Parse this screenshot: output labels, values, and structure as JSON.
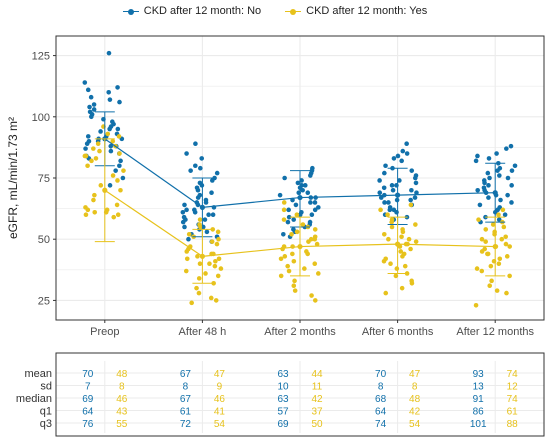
{
  "colors": {
    "no": "#1170aa",
    "yes": "#e7c21c",
    "grid": "#ebebeb",
    "panel_border": "#333333",
    "axis_text": "#4d4d4d"
  },
  "chart_data": {
    "type": "scatter",
    "ylabel": "eGFR, mL/min/1.73 m²",
    "xlabel": "",
    "categories": [
      "Preop",
      "After 48 h",
      "After 2 months",
      "After 6 months",
      "After 12 months"
    ],
    "yticks": [
      25,
      50,
      75,
      100,
      125
    ],
    "ylim": [
      17,
      133
    ],
    "grid": true,
    "legend_position": "top",
    "series": [
      {
        "name": "CKD after 12 month: No",
        "color_key": "no",
        "means": [
          91,
          63,
          67,
          68,
          69
        ],
        "error_low": [
          80,
          51,
          55,
          56,
          57
        ],
        "error_high": [
          102,
          75,
          78,
          79,
          81
        ],
        "points": [
          [
            114,
            112,
            111,
            110,
            108,
            107,
            106,
            105,
            104,
            103,
            102,
            101,
            100,
            99,
            98,
            97,
            96,
            95,
            95,
            94,
            93,
            92,
            92,
            91,
            91,
            90,
            90,
            89,
            88,
            88,
            87,
            86,
            85,
            84,
            83,
            82,
            80,
            78,
            75,
            72,
            126
          ],
          [
            89,
            85,
            83,
            80,
            79,
            78,
            77,
            75,
            74,
            73,
            72,
            71,
            70,
            69,
            68,
            67,
            66,
            65,
            65,
            64,
            64,
            63,
            62,
            62,
            61,
            61,
            60,
            60,
            59,
            58,
            58,
            57,
            56,
            55,
            55,
            54,
            53,
            52,
            51,
            50,
            49
          ],
          [
            79,
            78,
            77,
            76,
            75,
            74,
            73,
            72,
            72,
            71,
            70,
            69,
            69,
            68,
            67,
            67,
            66,
            65,
            65,
            64,
            63,
            62,
            62,
            61,
            60,
            60,
            59,
            58,
            57,
            57,
            56,
            55,
            54,
            53,
            52,
            51
          ],
          [
            89,
            86,
            85,
            84,
            83,
            82,
            80,
            79,
            78,
            77,
            76,
            75,
            74,
            74,
            73,
            72,
            72,
            71,
            70,
            70,
            69,
            69,
            68,
            67,
            67,
            66,
            66,
            65,
            65,
            64,
            63,
            62,
            62,
            61,
            60,
            59,
            58
          ],
          [
            88,
            87,
            85,
            84,
            83,
            82,
            81,
            80,
            79,
            78,
            78,
            77,
            76,
            75,
            75,
            74,
            73,
            72,
            72,
            71,
            70,
            70,
            69,
            68,
            68,
            67,
            66,
            65,
            64,
            63,
            62,
            61,
            60,
            59,
            58,
            57
          ]
        ]
      },
      {
        "name": "CKD after 12 month: Yes",
        "color_key": "yes",
        "means": [
          70,
          43,
          47,
          48,
          47
        ],
        "error_low": [
          49,
          32,
          35,
          36,
          35
        ],
        "error_high": [
          91,
          54,
          59,
          59,
          59
        ],
        "points": [
          [
            96,
            93,
            92,
            90,
            89,
            88,
            87,
            86,
            85,
            84,
            84,
            83,
            82,
            80,
            78,
            76,
            74,
            72,
            70,
            68,
            66,
            64,
            63,
            62,
            62,
            61,
            61,
            60,
            60,
            59
          ],
          [
            58,
            56,
            55,
            54,
            53,
            52,
            51,
            50,
            49,
            48,
            47,
            46,
            45,
            44,
            44,
            43,
            42,
            42,
            41,
            40,
            40,
            39,
            38,
            37,
            36,
            35,
            34,
            32,
            30,
            28,
            26,
            25,
            24
          ],
          [
            65,
            62,
            60,
            58,
            56,
            55,
            54,
            53,
            52,
            51,
            50,
            50,
            49,
            48,
            47,
            47,
            46,
            45,
            44,
            44,
            43,
            42,
            41,
            40,
            39,
            38,
            37,
            36,
            35,
            33,
            31,
            29,
            27,
            25
          ],
          [
            64,
            62,
            60,
            58,
            57,
            56,
            55,
            54,
            53,
            52,
            51,
            50,
            50,
            49,
            48,
            48,
            47,
            46,
            45,
            44,
            43,
            42,
            41,
            40,
            39,
            38,
            36,
            35,
            33,
            32,
            30,
            28
          ],
          [
            62,
            60,
            58,
            57,
            56,
            55,
            54,
            53,
            52,
            51,
            50,
            50,
            49,
            48,
            47,
            47,
            46,
            45,
            44,
            44,
            43,
            42,
            41,
            40,
            39,
            38,
            37,
            35,
            33,
            31,
            29,
            28,
            23
          ]
        ]
      }
    ]
  },
  "table": {
    "row_labels": [
      "mean",
      "sd",
      "median",
      "q1",
      "q3"
    ],
    "groups": [
      {
        "no": [
          "70",
          "7",
          "69",
          "64",
          "76"
        ],
        "yes": [
          "48",
          "8",
          "46",
          "43",
          "55"
        ]
      },
      {
        "no": [
          "67",
          "8",
          "67",
          "61",
          "72"
        ],
        "yes": [
          "47",
          "9",
          "46",
          "41",
          "54"
        ]
      },
      {
        "no": [
          "63",
          "10",
          "63",
          "57",
          "69"
        ],
        "yes": [
          "44",
          "11",
          "42",
          "37",
          "50"
        ]
      },
      {
        "no": [
          "70",
          "8",
          "68",
          "64",
          "74"
        ],
        "yes": [
          "47",
          "8",
          "48",
          "42",
          "54"
        ]
      },
      {
        "no": [
          "93",
          "13",
          "91",
          "86",
          "101"
        ],
        "yes": [
          "74",
          "12",
          "74",
          "61",
          "88"
        ]
      }
    ]
  }
}
